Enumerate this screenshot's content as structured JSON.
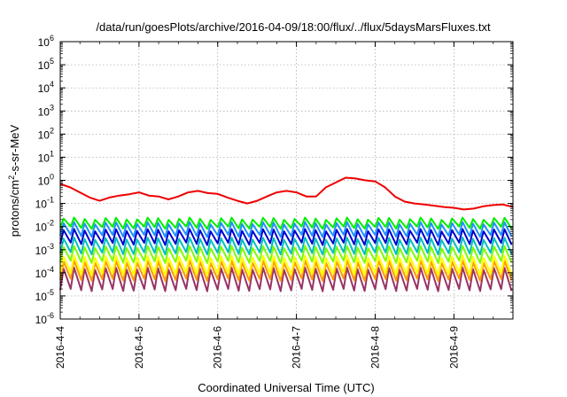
{
  "chart_data": {
    "type": "line",
    "title": "/data/run/goesPlots/archive/2016-04-09/18:00/flux/../flux/5daysMarsFluxes.txt",
    "xlabel": "Coordinated Universal Time (UTC)",
    "ylabel": {
      "base": "protons/cm",
      "sup": "2",
      "rest": "-s-sr-MeV"
    },
    "x_ticks": [
      "2016-4-4",
      "2016-4-5",
      "2016-4-6",
      "2016-4-7",
      "2016-4-8",
      "2016-4-9"
    ],
    "x_range": [
      "2016-04-04T00:00",
      "2016-04-09T18:00"
    ],
    "y_scale": "log",
    "y_range": [
      1e-06,
      1000000.0
    ],
    "y_ticks": [
      {
        "base": "10",
        "exp": "-6"
      },
      {
        "base": "10",
        "exp": "-5"
      },
      {
        "base": "10",
        "exp": "-4"
      },
      {
        "base": "10",
        "exp": "-3"
      },
      {
        "base": "10",
        "exp": "-2"
      },
      {
        "base": "10",
        "exp": "-1"
      },
      {
        "base": "10",
        "exp": "0"
      },
      {
        "base": "10",
        "exp": "1"
      },
      {
        "base": "10",
        "exp": "2"
      },
      {
        "base": "10",
        "exp": "3"
      },
      {
        "base": "10",
        "exp": "4"
      },
      {
        "base": "10",
        "exp": "5"
      },
      {
        "base": "10",
        "exp": "6"
      }
    ],
    "grid": true,
    "legend": "none",
    "series": [
      {
        "color": "#ee0000",
        "x": [
          "2016-04-04T00:00",
          "2016-04-04T03:00",
          "2016-04-04T06:00",
          "2016-04-04T09:00",
          "2016-04-04T12:00",
          "2016-04-04T15:00",
          "2016-04-04T18:00",
          "2016-04-04T21:00",
          "2016-04-05T00:00",
          "2016-04-05T03:00",
          "2016-04-05T06:00",
          "2016-04-05T09:00",
          "2016-04-05T12:00",
          "2016-04-05T15:00",
          "2016-04-05T18:00",
          "2016-04-05T21:00",
          "2016-04-06T00:00",
          "2016-04-06T03:00",
          "2016-04-06T06:00",
          "2016-04-06T09:00",
          "2016-04-06T12:00",
          "2016-04-06T15:00",
          "2016-04-06T18:00",
          "2016-04-06T21:00",
          "2016-04-07T00:00",
          "2016-04-07T03:00",
          "2016-04-07T06:00",
          "2016-04-07T09:00",
          "2016-04-07T12:00",
          "2016-04-07T15:00",
          "2016-04-07T18:00",
          "2016-04-07T21:00",
          "2016-04-08T00:00",
          "2016-04-08T03:00",
          "2016-04-08T06:00",
          "2016-04-08T09:00",
          "2016-04-08T12:00",
          "2016-04-08T15:00",
          "2016-04-08T18:00",
          "2016-04-08T21:00",
          "2016-04-09T00:00",
          "2016-04-09T03:00",
          "2016-04-09T06:00",
          "2016-04-09T09:00",
          "2016-04-09T12:00",
          "2016-04-09T15:00",
          "2016-04-09T18:00"
        ],
        "values": [
          0.7,
          0.5,
          0.3,
          0.18,
          0.13,
          0.18,
          0.22,
          0.25,
          0.3,
          0.22,
          0.2,
          0.15,
          0.2,
          0.3,
          0.35,
          0.28,
          0.26,
          0.18,
          0.13,
          0.1,
          0.13,
          0.2,
          0.3,
          0.35,
          0.3,
          0.2,
          0.2,
          0.5,
          0.8,
          1.3,
          1.2,
          1.0,
          0.9,
          0.5,
          0.2,
          0.12,
          0.1,
          0.09,
          0.08,
          0.07,
          0.065,
          0.055,
          0.06,
          0.075,
          0.085,
          0.09,
          0.07
        ]
      },
      {
        "color": "#00ee00",
        "low": 0.009,
        "high": 0.022,
        "period_hours": 3.2
      },
      {
        "color": "#1e90ff",
        "low": 0.004,
        "high": 0.014,
        "period_hours": 3.2
      },
      {
        "color": "#0000cd",
        "low": 0.0018,
        "high": 0.007,
        "period_hours": 3.2
      },
      {
        "color": "#00bfbf",
        "low": 0.0007,
        "high": 0.003,
        "period_hours": 3.2
      },
      {
        "color": "#7cfc00",
        "low": 0.0003,
        "high": 0.0013,
        "period_hours": 3.2
      },
      {
        "color": "#ffff00",
        "low": 9e-05,
        "high": 0.0005,
        "period_hours": 3.2
      },
      {
        "color": "#ff9900",
        "low": 5e-05,
        "high": 0.0003,
        "period_hours": 3.2
      },
      {
        "color": "#993366",
        "low": 1.8e-05,
        "high": 0.00015,
        "period_hours": 3.2
      }
    ]
  }
}
